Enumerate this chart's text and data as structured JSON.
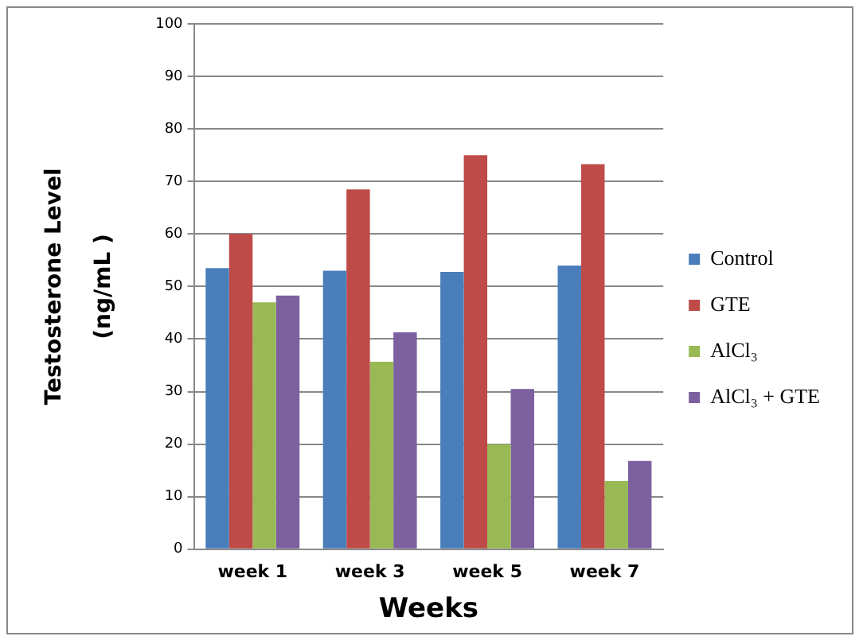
{
  "chart_data": {
    "type": "bar",
    "xlabel": "Weeks",
    "ylabel": "Testosterone Level\n(ng/mL )",
    "categories": [
      "week 1",
      "week 3",
      "week 5",
      "week 7"
    ],
    "series": [
      {
        "name": "Control",
        "color": "#4a7ebb",
        "values": [
          53.5,
          53,
          52.8,
          54
        ]
      },
      {
        "name": "GTE",
        "color": "#be4b48",
        "values": [
          60,
          68.5,
          75,
          73.3
        ]
      },
      {
        "name": "AlCl₃",
        "color": "#98b954",
        "values": [
          47,
          35.7,
          20,
          13
        ]
      },
      {
        "name": "AlCl₃ + GTE",
        "color": "#7d60a0",
        "values": [
          48.3,
          41.3,
          30.5,
          16.8
        ]
      }
    ],
    "ylim": [
      0,
      100
    ],
    "yticks": [
      0,
      10,
      20,
      30,
      40,
      50,
      60,
      70,
      80,
      90,
      100
    ],
    "grid": "y",
    "legend": "right"
  }
}
